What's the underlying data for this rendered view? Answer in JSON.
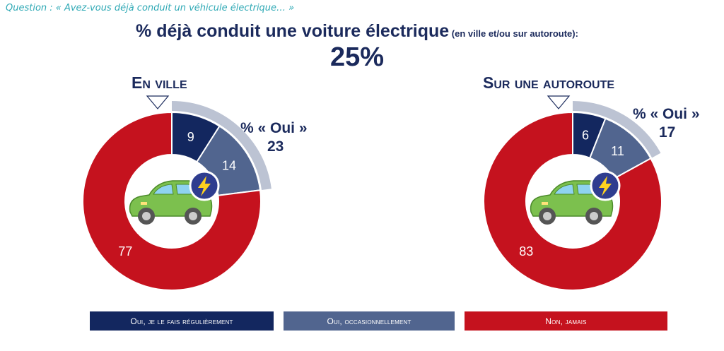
{
  "question": "Question : « Avez-vous déjà conduit un véhicule électrique… »",
  "headline": {
    "main": "% déjà conduit une voiture électrique",
    "sub": " (en ville et/ou sur autoroute):",
    "value": "25%"
  },
  "colors": {
    "regulier": "#13275f",
    "occasionnel": "#51658f",
    "jamais": "#c5121e",
    "oui_arc": "#bcc3d3",
    "text": "#1b2a5c"
  },
  "chart_data": [
    {
      "type": "pie",
      "title": "En ville",
      "oui_label": "% «  Oui »",
      "oui_total": "23",
      "categories": [
        "Oui, je le fais régulièrement",
        "Oui, occasionnellement",
        "Non, jamais"
      ],
      "values": [
        9,
        14,
        77
      ]
    },
    {
      "type": "pie",
      "title": "Sur une autoroute",
      "oui_label": "% «  Oui »",
      "oui_total": "17",
      "categories": [
        "Oui, je le fais régulièrement",
        "Oui, occasionnellement",
        "Non, jamais"
      ],
      "values": [
        6,
        11,
        83
      ]
    }
  ],
  "legend": [
    {
      "label": "Oui, je le fais régulièrement",
      "color": "#13275f"
    },
    {
      "label": "Oui, occasionnellement",
      "color": "#51658f"
    },
    {
      "label": "Non, jamais",
      "color": "#c5121e"
    }
  ]
}
